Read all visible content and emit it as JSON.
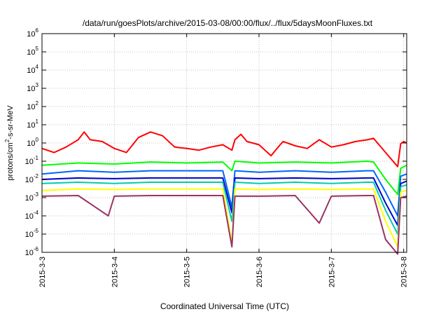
{
  "chart_data": {
    "type": "line",
    "title": "/data/run/goesPlots/archive/2015-03-08/00:00/flux/../flux/5daysMoonFluxes.txt",
    "xlabel": "Coordinated Universal Time (UTC)",
    "ylabel": {
      "base": "protons/cm",
      "sup": "2",
      "rest": "-s-sr-MeV"
    },
    "x_ticks": [
      "2015-3-3",
      "2015-3-4",
      "2015-3-5",
      "2015-3-6",
      "2015-3-7",
      "2015-3-8"
    ],
    "xlim": [
      "2015-03-03T00:00",
      "2015-03-08T01:00"
    ],
    "y_scale": "log",
    "ylim": [
      1e-06,
      1000000.0
    ],
    "y_ticks": [
      {
        "base": "10",
        "exp": "-6",
        "value": 1e-06
      },
      {
        "base": "10",
        "exp": "-5",
        "value": 1e-05
      },
      {
        "base": "10",
        "exp": "-4",
        "value": 0.0001
      },
      {
        "base": "10",
        "exp": "-3",
        "value": 0.001
      },
      {
        "base": "10",
        "exp": "-2",
        "value": 0.01
      },
      {
        "base": "10",
        "exp": "-1",
        "value": 0.1
      },
      {
        "base": "10",
        "exp": "0",
        "value": 1
      },
      {
        "base": "10",
        "exp": "1",
        "value": 10
      },
      {
        "base": "10",
        "exp": "2",
        "value": 100
      },
      {
        "base": "10",
        "exp": "3",
        "value": 1000
      },
      {
        "base": "10",
        "exp": "4",
        "value": 10000
      },
      {
        "base": "10",
        "exp": "5",
        "value": 100000
      },
      {
        "base": "10",
        "exp": "6",
        "value": 1000000
      }
    ],
    "grid": true,
    "legend": "none",
    "series": [
      {
        "color": "#ff0000",
        "x": [
          "2015-03-03T00:00",
          "2015-03-03T04:00",
          "2015-03-03T08:00",
          "2015-03-03T12:00",
          "2015-03-03T14:00",
          "2015-03-03T16:00",
          "2015-03-03T20:00",
          "2015-03-04T00:00",
          "2015-03-04T04:00",
          "2015-03-04T08:00",
          "2015-03-04T12:00",
          "2015-03-04T16:00",
          "2015-03-04T20:00",
          "2015-03-05T00:00",
          "2015-03-05T04:00",
          "2015-03-05T08:00",
          "2015-03-05T12:00",
          "2015-03-05T15:00",
          "2015-03-05T16:00",
          "2015-03-05T18:00",
          "2015-03-05T20:00",
          "2015-03-06T00:00",
          "2015-03-06T04:00",
          "2015-03-06T07:00",
          "2015-03-06T08:00",
          "2015-03-06T12:00",
          "2015-03-06T16:00",
          "2015-03-06T20:00",
          "2015-03-07T00:00",
          "2015-03-07T04:00",
          "2015-03-07T08:00",
          "2015-03-07T12:00",
          "2015-03-07T14:00",
          "2015-03-07T18:00",
          "2015-03-07T22:00",
          "2015-03-07T23:00",
          "2015-03-08T00:00",
          "2015-03-08T01:00"
        ],
        "y": [
          0.5,
          0.3,
          0.6,
          1.5,
          4,
          1.5,
          1.2,
          0.5,
          0.3,
          2,
          4,
          2.5,
          0.6,
          0.5,
          0.4,
          0.6,
          0.8,
          0.4,
          1.5,
          3,
          1.2,
          0.8,
          0.2,
          0.8,
          1.2,
          0.7,
          0.5,
          1.5,
          0.6,
          0.8,
          1.2,
          1.5,
          1.8,
          0.3,
          0.05,
          0.9,
          1.2,
          1
        ]
      },
      {
        "color": "#00ff00",
        "x": [
          "2015-03-03T00:00",
          "2015-03-03T12:00",
          "2015-03-04T00:00",
          "2015-03-04T12:00",
          "2015-03-05T00:00",
          "2015-03-05T12:00",
          "2015-03-05T15:00",
          "2015-03-05T16:00",
          "2015-03-06T00:00",
          "2015-03-06T12:00",
          "2015-03-07T00:00",
          "2015-03-07T12:00",
          "2015-03-07T14:00",
          "2015-03-07T18:00",
          "2015-03-07T22:00",
          "2015-03-07T23:00",
          "2015-03-08T01:00"
        ],
        "y": [
          0.06,
          0.08,
          0.07,
          0.09,
          0.08,
          0.09,
          0.03,
          0.1,
          0.08,
          0.09,
          0.08,
          0.1,
          0.09,
          0.01,
          0.0015,
          0.04,
          0.06
        ]
      },
      {
        "color": "#0066ff",
        "x": [
          "2015-03-03T00:00",
          "2015-03-03T12:00",
          "2015-03-04T00:00",
          "2015-03-04T12:00",
          "2015-03-05T00:00",
          "2015-03-05T12:00",
          "2015-03-05T15:00",
          "2015-03-05T16:00",
          "2015-03-06T00:00",
          "2015-03-06T12:00",
          "2015-03-07T00:00",
          "2015-03-07T12:00",
          "2015-03-07T14:00",
          "2015-03-07T18:00",
          "2015-03-07T22:00",
          "2015-03-07T23:00",
          "2015-03-08T01:00"
        ],
        "y": [
          0.02,
          0.03,
          0.025,
          0.03,
          0.03,
          0.03,
          0.0003,
          0.03,
          0.025,
          0.03,
          0.025,
          0.03,
          0.03,
          0.002,
          0.0001,
          0.015,
          0.02
        ]
      },
      {
        "color": "#0000cc",
        "x": [
          "2015-03-03T00:00",
          "2015-03-03T12:00",
          "2015-03-04T00:00",
          "2015-03-04T12:00",
          "2015-03-05T00:00",
          "2015-03-05T12:00",
          "2015-03-05T15:00",
          "2015-03-05T16:00",
          "2015-03-06T00:00",
          "2015-03-06T12:00",
          "2015-03-07T00:00",
          "2015-03-07T12:00",
          "2015-03-07T14:00",
          "2015-03-07T18:00",
          "2015-03-07T22:00",
          "2015-03-07T23:00",
          "2015-03-08T01:00"
        ],
        "y": [
          0.01,
          0.012,
          0.011,
          0.012,
          0.012,
          0.012,
          0.00015,
          0.012,
          0.011,
          0.012,
          0.011,
          0.012,
          0.012,
          0.0005,
          3e-05,
          0.006,
          0.008
        ]
      },
      {
        "color": "#00ccaa",
        "x": [
          "2015-03-03T00:00",
          "2015-03-03T12:00",
          "2015-03-04T00:00",
          "2015-03-04T12:00",
          "2015-03-05T00:00",
          "2015-03-05T12:00",
          "2015-03-05T15:00",
          "2015-03-05T16:00",
          "2015-03-06T00:00",
          "2015-03-06T12:00",
          "2015-03-07T00:00",
          "2015-03-07T12:00",
          "2015-03-07T14:00",
          "2015-03-07T18:00",
          "2015-03-07T22:00",
          "2015-03-07T23:00",
          "2015-03-08T01:00"
        ],
        "y": [
          0.006,
          0.007,
          0.006,
          0.007,
          0.007,
          0.007,
          5e-05,
          0.007,
          0.006,
          0.007,
          0.006,
          0.007,
          0.007,
          0.0002,
          1e-05,
          0.004,
          0.005
        ]
      },
      {
        "color": "#ffff00",
        "x": [
          "2015-03-03T00:00",
          "2015-03-03T12:00",
          "2015-03-04T00:00",
          "2015-03-04T12:00",
          "2015-03-05T00:00",
          "2015-03-05T12:00",
          "2015-03-05T15:00",
          "2015-03-05T16:00",
          "2015-03-06T00:00",
          "2015-03-06T12:00",
          "2015-03-07T00:00",
          "2015-03-07T12:00",
          "2015-03-07T14:00",
          "2015-03-07T18:00",
          "2015-03-07T22:00",
          "2015-03-07T23:00",
          "2015-03-08T01:00"
        ],
        "y": [
          0.0025,
          0.003,
          0.0028,
          0.003,
          0.003,
          0.003,
          3e-06,
          0.003,
          0.0028,
          0.003,
          0.0028,
          0.003,
          0.003,
          5e-05,
          2e-06,
          0.002,
          0.0025
        ]
      },
      {
        "color": "#993366",
        "x": [
          "2015-03-03T00:00",
          "2015-03-03T12:00",
          "2015-03-03T22:00",
          "2015-03-04T00:00",
          "2015-03-04T12:00",
          "2015-03-05T00:00",
          "2015-03-05T12:00",
          "2015-03-05T15:00",
          "2015-03-05T16:00",
          "2015-03-06T00:00",
          "2015-03-06T12:00",
          "2015-03-06T20:00",
          "2015-03-07T00:00",
          "2015-03-07T12:00",
          "2015-03-07T14:00",
          "2015-03-07T18:00",
          "2015-03-07T22:00",
          "2015-03-07T23:00",
          "2015-03-08T01:00"
        ],
        "y": [
          0.0012,
          0.0013,
          0.0001,
          0.0012,
          0.0013,
          0.0013,
          0.0013,
          2e-06,
          0.0012,
          0.0012,
          0.0013,
          4e-05,
          0.0012,
          0.0013,
          0.0013,
          5e-06,
          8e-07,
          0.001,
          0.0012
        ]
      }
    ]
  }
}
